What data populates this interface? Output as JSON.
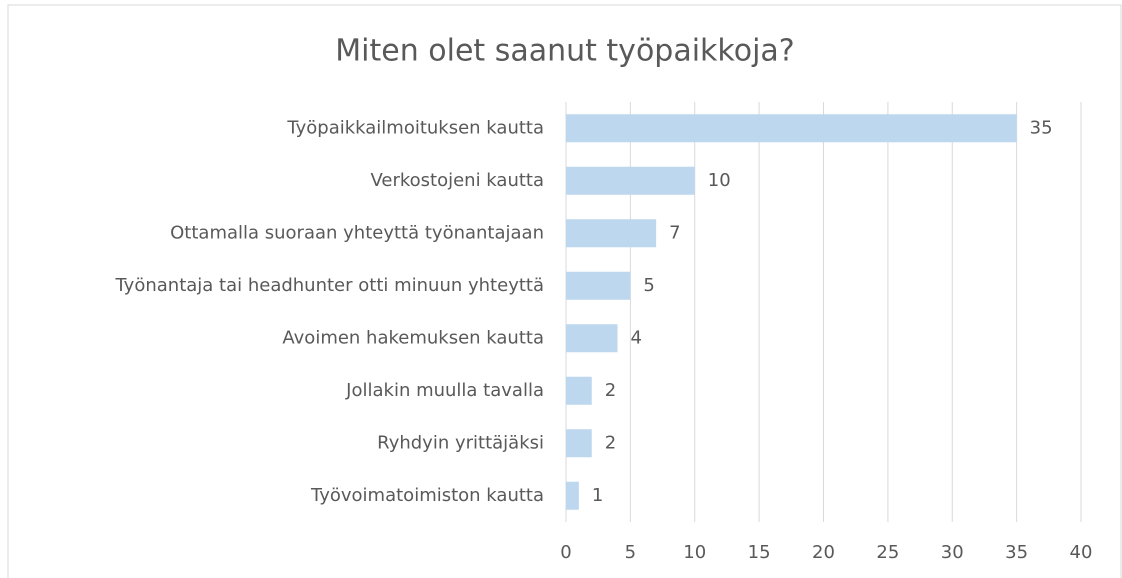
{
  "chart_data": {
    "type": "bar",
    "horizontal": true,
    "title": "Miten olet saanut työpaikkoja?",
    "categories": [
      "Työpaikkailmoituksen kautta",
      "Verkostojeni kautta",
      "Ottamalla suoraan yhteyttä työnantajaan",
      "Työnantaja tai headhunter otti minuun yhteyttä",
      "Avoimen hakemuksen kautta",
      "Jollakin muulla tavalla",
      "Ryhdyin yrittäjäksi",
      "Työvoimatoimiston kautta"
    ],
    "values": [
      35,
      10,
      7,
      5,
      4,
      2,
      2,
      1
    ],
    "color": "#bdd7ee",
    "xlim": [
      0,
      40
    ],
    "xticks": [
      0,
      5,
      10,
      15,
      20,
      25,
      30,
      35,
      40
    ],
    "grid": true
  }
}
